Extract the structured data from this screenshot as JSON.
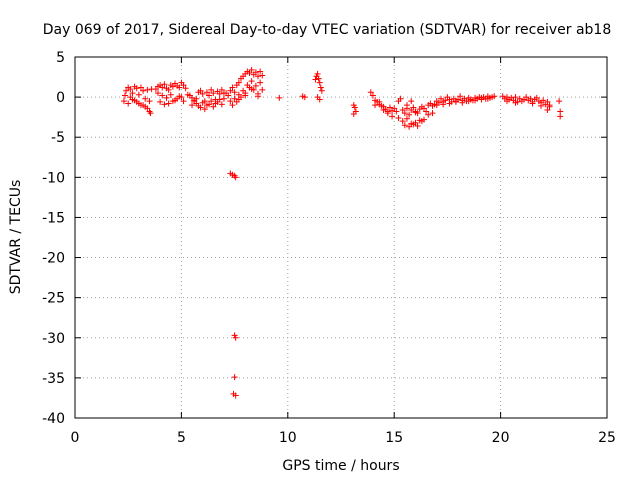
{
  "chart_data": {
    "type": "scatter",
    "title": "Day 069 of 2017, Sidereal Day-to-day VTEC variation (SDTVAR) for receiver ab18",
    "xlabel": "GPS time / hours",
    "ylabel": "SDTVAR / TECUs",
    "xlim": [
      0,
      25
    ],
    "ylim": [
      -40,
      5
    ],
    "xticks": [
      0,
      5,
      10,
      15,
      20,
      25
    ],
    "yticks": [
      5,
      0,
      -5,
      -10,
      -15,
      -20,
      -25,
      -30,
      -35,
      -40
    ],
    "xtick_labels": [
      "0",
      "5",
      "10",
      "15",
      "20",
      "25"
    ],
    "ytick_labels": [
      "5",
      "0",
      "-5",
      "-10",
      "-15",
      "-20",
      "-25",
      "-30",
      "-35",
      "-40"
    ],
    "grid": true,
    "marker": "+",
    "color": "#ff0000",
    "series": [
      {
        "name": "SDTVAR",
        "x": [
          2.3,
          2.4,
          2.5,
          2.6,
          2.7,
          2.8,
          2.9,
          3.0,
          3.1,
          3.2,
          3.3,
          3.4,
          3.5,
          3.6,
          2.5,
          2.7,
          2.9,
          3.1,
          3.3,
          3.5,
          2.35,
          2.6,
          2.8,
          3.0,
          3.2,
          3.4,
          3.55,
          3.8,
          3.9,
          4.0,
          4.1,
          4.2,
          4.3,
          4.4,
          4.5,
          4.6,
          4.7,
          4.8,
          4.9,
          5.0,
          5.1,
          5.2,
          3.9,
          4.1,
          4.3,
          4.5,
          4.7,
          4.9,
          5.1,
          4.0,
          4.2,
          4.4,
          4.6,
          4.8,
          5.0,
          5.3,
          5.4,
          5.5,
          5.6,
          5.7,
          5.8,
          5.9,
          6.0,
          6.1,
          6.2,
          6.3,
          6.4,
          6.5,
          6.6,
          6.7,
          6.8,
          6.9,
          7.0,
          5.5,
          5.7,
          5.9,
          6.1,
          6.3,
          6.5,
          6.7,
          6.9,
          5.6,
          5.8,
          6.0,
          6.2,
          6.4,
          6.6,
          6.8,
          7.0,
          7.1,
          7.2,
          7.3,
          7.4,
          7.5,
          7.6,
          7.7,
          7.8,
          7.9,
          8.0,
          8.1,
          8.2,
          8.3,
          8.4,
          8.5,
          8.6,
          8.7,
          8.8,
          7.3,
          7.5,
          7.7,
          7.9,
          8.1,
          8.3,
          8.5,
          8.7,
          7.4,
          7.6,
          7.8,
          8.0,
          8.2,
          8.4,
          8.6,
          8.8,
          7.7,
          8.0,
          8.3,
          8.6,
          7.3,
          7.4,
          7.5,
          7.55,
          7.5,
          7.55,
          7.5,
          7.45,
          7.55,
          9.6,
          10.7,
          10.8,
          11.3,
          11.35,
          11.4,
          11.45,
          11.5,
          11.55,
          11.6,
          11.4,
          11.5,
          13.1,
          13.15,
          13.2,
          13.1,
          13.9,
          14.0,
          14.1,
          14.2,
          14.3,
          14.4,
          14.5,
          14.6,
          14.7,
          14.8,
          14.9,
          15.0,
          15.1,
          15.2,
          15.3,
          15.4,
          15.5,
          15.6,
          15.7,
          15.8,
          15.9,
          16.0,
          16.1,
          16.2,
          16.3,
          16.4,
          16.5,
          16.6,
          16.7,
          16.8,
          14.1,
          14.3,
          14.5,
          14.7,
          14.9,
          15.2,
          15.4,
          15.6,
          15.8,
          16.0,
          16.2,
          16.4,
          16.6,
          16.8,
          15.5,
          15.7,
          15.9,
          16.1,
          16.3,
          15.6,
          15.8,
          16.0,
          16.9,
          17.0,
          17.1,
          17.2,
          17.3,
          17.4,
          17.5,
          17.6,
          17.7,
          17.8,
          17.9,
          18.0,
          18.1,
          18.2,
          18.3,
          18.4,
          18.5,
          18.6,
          18.7,
          18.8,
          18.9,
          19.0,
          19.1,
          19.2,
          19.3,
          19.4,
          19.5,
          19.6,
          19.7,
          17.0,
          17.3,
          17.6,
          17.9,
          18.2,
          18.5,
          18.8,
          19.1,
          19.4,
          20.1,
          20.2,
          20.3,
          20.4,
          20.5,
          20.6,
          20.7,
          20.8,
          20.9,
          21.0,
          21.1,
          21.2,
          21.3,
          21.4,
          21.5,
          21.6,
          21.7,
          21.8,
          21.9,
          22.0,
          22.1,
          22.2,
          22.3,
          20.3,
          20.7,
          21.1,
          21.5,
          21.9,
          22.2,
          22.3,
          22.75,
          22.8,
          22.8
        ],
        "y": [
          -0.5,
          0.8,
          1.2,
          1.0,
          0.5,
          1.3,
          1.1,
          0.3,
          1.2,
          0.8,
          -0.2,
          0.9,
          -0.5,
          1.0,
          -0.8,
          -0.3,
          -0.6,
          -1.0,
          -1.2,
          -1.8,
          0.2,
          0.0,
          -0.4,
          -0.8,
          -1.0,
          -1.4,
          -2.0,
          1.0,
          1.3,
          1.5,
          1.2,
          1.6,
          1.1,
          0.9,
          1.5,
          1.3,
          1.7,
          1.4,
          1.2,
          1.8,
          1.5,
          1.1,
          0.5,
          0.2,
          -0.1,
          0.3,
          -0.4,
          0.1,
          -0.5,
          -0.6,
          -0.9,
          -0.8,
          -0.5,
          -0.2,
          0.0,
          0.3,
          0.2,
          -0.1,
          -0.5,
          -0.2,
          0.6,
          0.8,
          0.4,
          -0.5,
          0.6,
          0.2,
          0.9,
          0.5,
          -0.3,
          0.7,
          0.4,
          0.9,
          0.5,
          -1.0,
          -0.8,
          -1.3,
          -1.5,
          -0.9,
          -1.2,
          -0.6,
          -0.9,
          -0.4,
          -1.1,
          -0.7,
          -1.0,
          -0.5,
          -0.8,
          -0.3,
          -0.2,
          0.5,
          0.2,
          0.8,
          1.2,
          0.6,
          1.5,
          1.8,
          2.3,
          2.6,
          2.9,
          3.2,
          3.0,
          3.4,
          2.8,
          3.1,
          2.6,
          3.2,
          2.7,
          -0.5,
          -0.2,
          0.3,
          0.8,
          1.5,
          2.0,
          1.4,
          1.8,
          -1.0,
          -0.6,
          0.0,
          0.5,
          1.2,
          0.9,
          0.4,
          0.9,
          -0.3,
          0.2,
          1.0,
          0.1,
          -9.5,
          -9.7,
          -9.8,
          -10.0,
          -29.7,
          -30.0,
          -34.9,
          -37.0,
          -37.2,
          -0.1,
          0.1,
          0.0,
          2.2,
          2.6,
          2.9,
          2.3,
          1.8,
          1.2,
          0.8,
          0.0,
          -0.3,
          -1.0,
          -1.3,
          -1.8,
          -2.1,
          0.6,
          0.2,
          -0.4,
          -0.6,
          -0.9,
          -1.1,
          -1.2,
          -1.5,
          -1.8,
          -1.3,
          -1.7,
          -1.4,
          -1.8,
          -0.5,
          -0.2,
          -1.6,
          -2.0,
          -1.4,
          -2.2,
          -1.6,
          -1.3,
          -1.9,
          -2.0,
          -1.5,
          -1.2,
          -1.4,
          -1.8,
          -1.0,
          -0.8,
          -1.1,
          -1.0,
          -0.6,
          -1.6,
          -2.0,
          -2.4,
          -2.6,
          -3.0,
          -2.7,
          -3.3,
          -3.2,
          -2.9,
          -2.8,
          -2.2,
          -2.0,
          -3.5,
          -3.7,
          -3.4,
          -3.6,
          -3.0,
          -1.0,
          -0.5,
          -1.8,
          -0.9,
          -0.5,
          -0.7,
          -0.2,
          -0.6,
          -0.4,
          0.0,
          -0.3,
          -0.6,
          -0.2,
          -0.5,
          -0.3,
          0.1,
          -0.4,
          -0.2,
          -0.5,
          -0.1,
          -0.3,
          -0.4,
          -0.1,
          -0.2,
          0.0,
          -0.1,
          0.0,
          -0.2,
          0.1,
          -0.1,
          0.0,
          0.1,
          -1.0,
          -0.9,
          -0.8,
          -0.6,
          -0.7,
          -0.5,
          -0.4,
          -0.3,
          -0.2,
          0.1,
          -0.2,
          0.0,
          -0.3,
          -0.1,
          -0.4,
          0.0,
          -0.6,
          -0.2,
          -0.5,
          -0.3,
          0.0,
          -0.4,
          -0.2,
          -0.6,
          -0.3,
          -0.1,
          -0.5,
          -0.7,
          -0.4,
          -0.9,
          -0.6,
          -1.0,
          -0.5,
          -0.7,
          -0.3,
          -0.8,
          -1.1,
          -1.6,
          -1.2,
          -0.5,
          -1.8,
          -2.4
        ]
      }
    ]
  }
}
